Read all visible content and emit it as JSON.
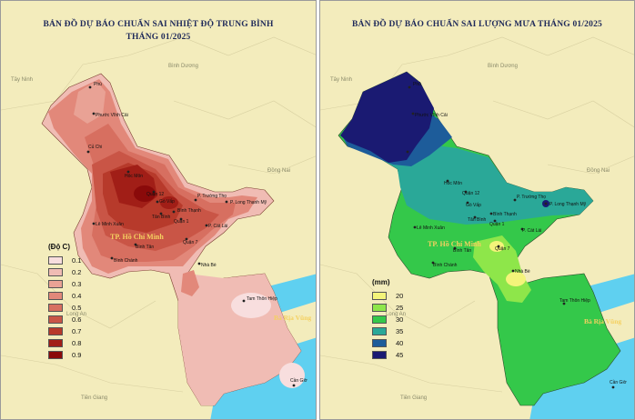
{
  "temp_panel": {
    "title_line1": "BẢN ĐỒ DỰ BÁO CHUẨN SAI NHIỆT ĐỘ TRUNG BÌNH",
    "title_line2": "THÁNG 01/2025",
    "legend_title": "(Độ C)",
    "legend": [
      {
        "value": "0.1",
        "color": "#f8dede"
      },
      {
        "value": "0.2",
        "color": "#f0bcb4"
      },
      {
        "value": "0.3",
        "color": "#e9a295"
      },
      {
        "value": "0.4",
        "color": "#e2887a"
      },
      {
        "value": "0.5",
        "color": "#d76f60"
      },
      {
        "value": "0.6",
        "color": "#c95546"
      },
      {
        "value": "0.7",
        "color": "#b73a2b"
      },
      {
        "value": "0.8",
        "color": "#a11e17"
      },
      {
        "value": "0.9",
        "color": "#8a0a0a"
      }
    ]
  },
  "rain_panel": {
    "title_line1": "BẢN ĐỒ DỰ BÁO CHUẨN SAI LƯỢNG MƯA THÁNG 01/2025",
    "legend_title": "(mm)",
    "legend": [
      {
        "value": "20",
        "color": "#f4f47a"
      },
      {
        "value": "25",
        "color": "#8ee64a"
      },
      {
        "value": "30",
        "color": "#34c84a"
      },
      {
        "value": "35",
        "color": "#2aa898"
      },
      {
        "value": "40",
        "color": "#1d5c9a"
      },
      {
        "value": "45",
        "color": "#1a1a72"
      }
    ]
  },
  "map_labels": {
    "tay_ninh": "Tây Ninh",
    "binh_duong": "Bình Dương",
    "dong_nai": "Đồng Nai",
    "long_an": "Long An",
    "tien_giang": "Tiền Giang",
    "ba_ria_vung_tau": "Bà Rịa Vũng",
    "city": "TP. Hồ Chí Minh",
    "phu": "Phú",
    "phuoc_vinh_cai": "Phước Vĩnh Cải",
    "cu_chi": "Củ Chi",
    "hoc_mon": "Hóc Môn",
    "quan_12": "Quận 12",
    "go_vap": "Gò Vấp",
    "tan_binh": "Tân Bình",
    "binh_thanh": "Bình Thạnh",
    "quan_1": "Quận 1",
    "p_truong_tho": "P. Trường Thọ",
    "p_long_thanh_my": "P. Long Thạnh Mỹ",
    "p_cat_lai": "P. Cát Lái",
    "le_minh_xuan": "Lê Minh Xuân",
    "binh_tan": "Bình Tân",
    "quan_7": "Quận 7",
    "binh_chanh": "Bình Chánh",
    "nha_be": "Nhà Bè",
    "tam_thon_hiep": "Tam Thôn Hiệp",
    "can_gio": "Cần Giờ"
  }
}
